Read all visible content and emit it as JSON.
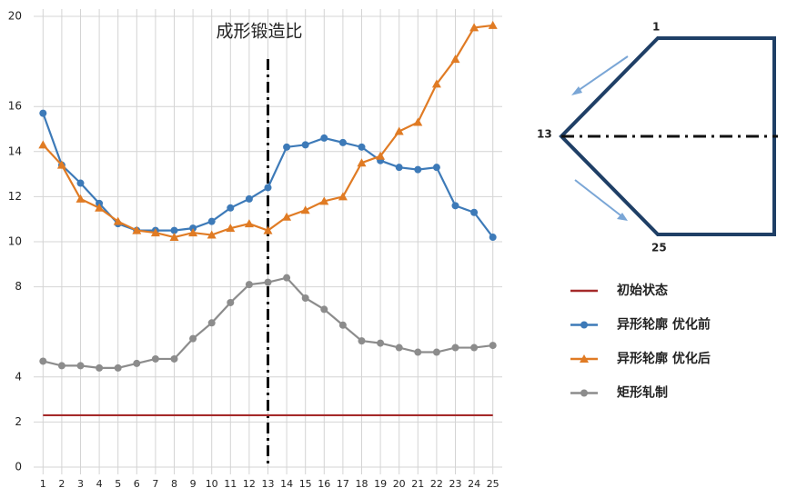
{
  "chart_data": {
    "type": "line",
    "title": "成形锻造比",
    "x": [
      1,
      2,
      3,
      4,
      5,
      6,
      7,
      8,
      9,
      10,
      11,
      12,
      13,
      14,
      15,
      16,
      17,
      18,
      19,
      20,
      21,
      22,
      23,
      24,
      25
    ],
    "xlim": [
      0.5,
      25.5
    ],
    "ylim": [
      0,
      20
    ],
    "yticks": [
      0,
      2,
      4,
      8,
      10,
      12,
      14,
      16,
      20
    ],
    "grid": true,
    "marker_x": 13,
    "series": [
      {
        "name": "初始状态",
        "color": "#a52a2a",
        "marker": "none",
        "values": [
          2.3,
          2.3,
          2.3,
          2.3,
          2.3,
          2.3,
          2.3,
          2.3,
          2.3,
          2.3,
          2.3,
          2.3,
          2.3,
          2.3,
          2.3,
          2.3,
          2.3,
          2.3,
          2.3,
          2.3,
          2.3,
          2.3,
          2.3,
          2.3,
          2.3
        ]
      },
      {
        "name": "异形轮廓 优化前",
        "color": "#3d7ab8",
        "marker": "circle",
        "values": [
          15.7,
          13.4,
          12.6,
          11.7,
          10.8,
          10.5,
          10.5,
          10.5,
          10.6,
          10.9,
          11.5,
          11.9,
          12.4,
          14.2,
          14.3,
          14.6,
          14.4,
          14.2,
          13.6,
          13.3,
          13.2,
          13.3,
          11.6,
          11.3,
          10.2
        ]
      },
      {
        "name": "异形轮廓 优化后",
        "color": "#e07b24",
        "marker": "triangle",
        "values": [
          14.3,
          13.4,
          11.9,
          11.5,
          10.9,
          10.5,
          10.4,
          10.2,
          10.4,
          10.3,
          10.6,
          10.8,
          10.5,
          11.1,
          11.4,
          11.8,
          12.0,
          13.5,
          13.8,
          14.9,
          15.3,
          17.0,
          18.1,
          19.5,
          19.6
        ]
      },
      {
        "name": "矩形轧制",
        "color": "#8c8c8c",
        "marker": "circle",
        "values": [
          4.7,
          4.5,
          4.5,
          4.4,
          4.4,
          4.6,
          4.8,
          4.8,
          5.7,
          6.4,
          7.3,
          8.1,
          8.2,
          8.4,
          7.5,
          7.0,
          6.3,
          5.6,
          5.5,
          5.3,
          5.1,
          5.1,
          5.3,
          5.3,
          5.4
        ]
      }
    ],
    "diagram_labels": [
      "1",
      "13",
      "25"
    ]
  }
}
